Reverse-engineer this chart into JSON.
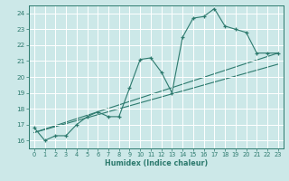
{
  "background_color": "#cce8e8",
  "grid_color": "#d0e8e8",
  "line_color": "#2d7a6e",
  "xlabel": "Humidex (Indice chaleur)",
  "xlim": [
    -0.5,
    23.5
  ],
  "ylim": [
    15.5,
    24.5
  ],
  "xticks": [
    0,
    1,
    2,
    3,
    4,
    5,
    6,
    7,
    8,
    9,
    10,
    11,
    12,
    13,
    14,
    15,
    16,
    17,
    18,
    19,
    20,
    21,
    22,
    23
  ],
  "yticks": [
    16,
    17,
    18,
    19,
    20,
    21,
    22,
    23,
    24
  ],
  "zigzag": {
    "x": [
      0,
      1,
      2,
      3,
      4,
      5,
      6,
      7,
      8,
      9,
      10,
      11,
      12,
      13,
      14,
      15,
      16,
      17,
      18,
      19,
      20,
      21,
      22,
      23
    ],
    "y": [
      16.8,
      16.0,
      16.3,
      16.3,
      17.0,
      17.5,
      17.8,
      17.5,
      17.5,
      19.3,
      21.1,
      21.2,
      20.3,
      19.0,
      22.5,
      23.7,
      23.8,
      24.3,
      23.2,
      23.0,
      22.8,
      21.5,
      21.5,
      21.5
    ]
  },
  "line1": {
    "x": [
      0,
      23
    ],
    "y": [
      16.5,
      21.5
    ]
  },
  "line2": {
    "x": [
      0,
      23
    ],
    "y": [
      16.5,
      20.8
    ]
  }
}
